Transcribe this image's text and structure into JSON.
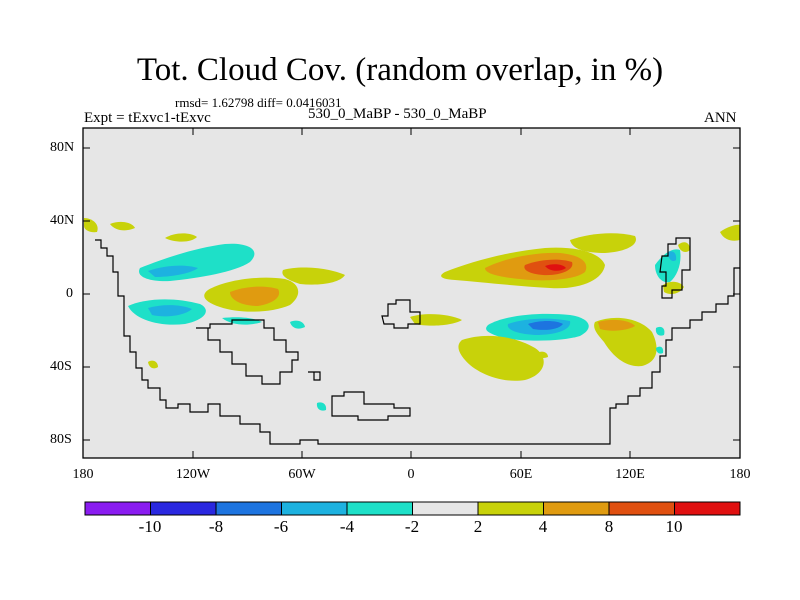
{
  "title": "Tot. Cloud Cov. (random overlap, in %)",
  "stats": "rmsd= 1.62798 diff= 0.0416031",
  "subtitle_left": "Expt = tExvc1-tExvc",
  "subtitle_center": "530_0_MaBP - 530_0_MaBP",
  "subtitle_right": "ANN",
  "chart_data": {
    "type": "contour-map",
    "projection": "cylindrical-equidistant",
    "variable": "Total cloud cover difference (%)",
    "lon_range": [
      -180,
      180
    ],
    "lat_range": [
      -90,
      90
    ],
    "y_ticks": [
      "80N",
      "40N",
      "0",
      "40S",
      "80S"
    ],
    "x_ticks": [
      "180",
      "120W",
      "60W",
      "0",
      "60E",
      "120E",
      "180"
    ],
    "colorbar_levels": [
      "-10",
      "-8",
      "-6",
      "-4",
      "-2",
      "2",
      "4",
      "8",
      "10"
    ],
    "colorbar_colors": [
      "#8a1cf0",
      "#2a28e0",
      "#1d74e0",
      "#1db2e0",
      "#1ee0c8",
      "#e6e6e6",
      "#c8d20a",
      "#e09b10",
      "#e05010",
      "#e01010"
    ],
    "features": [
      {
        "name": "positive max east of 60E (~15N)",
        "lon": 78,
        "lat": 15,
        "value": "10"
      },
      {
        "name": "positive max near 90W (~0)",
        "lon": -90,
        "lat": 0,
        "value": "8"
      },
      {
        "name": "negative min near 60E (~15S)",
        "lon": 60,
        "lat": -15,
        "value": "-6"
      },
      {
        "name": "negative min near 140W (~10S)",
        "lon": -140,
        "lat": -10,
        "value": "-4"
      }
    ]
  }
}
